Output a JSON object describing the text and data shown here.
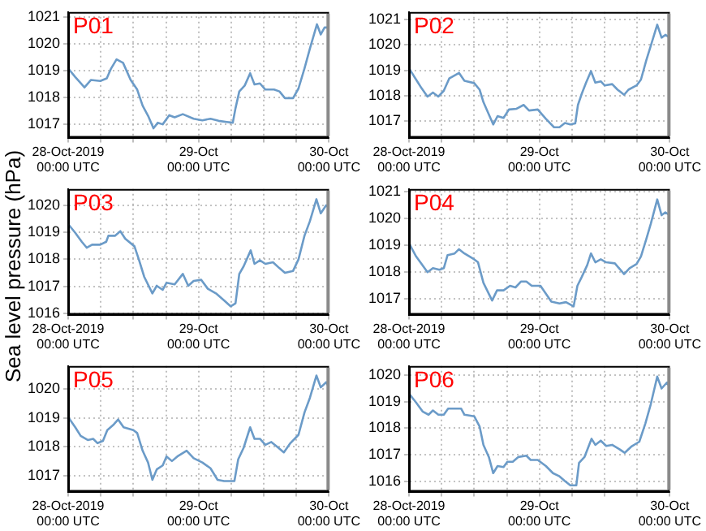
{
  "chart_data": [
    {
      "type": "line",
      "title": "P01",
      "color": "#6b9bc8",
      "xlim": [
        "2019-10-28T00:00",
        "2019-10-30T00:00"
      ],
      "ylim": [
        1016.5,
        1021.2
      ],
      "yticks": [
        1017,
        1018,
        1019,
        1020,
        1021
      ],
      "grid": true,
      "xticks": [
        {
          "value": "2019-10-28T00:00",
          "label": "28-Oct-2019\n00:00 UTC"
        },
        {
          "value": "2019-10-28T06:00",
          "label": null
        },
        {
          "value": "2019-10-28T12:00",
          "label": null
        },
        {
          "value": "2019-10-28T18:00",
          "label": null
        },
        {
          "value": "2019-10-29T00:00",
          "label": "29-Oct\n00:00 UTC"
        },
        {
          "value": "2019-10-29T06:00",
          "label": null
        },
        {
          "value": "2019-10-29T12:00",
          "label": null
        },
        {
          "value": "2019-10-29T18:00",
          "label": null
        },
        {
          "value": "2019-10-30T00:00",
          "label": "30-Oct\n00:00 UTC"
        }
      ],
      "x": [
        "2019-10-28T00:00",
        "2019-10-28T01:18",
        "2019-10-28T03:00",
        "2019-10-28T04:12",
        "2019-10-28T05:54",
        "2019-10-28T07:06",
        "2019-10-28T07:54",
        "2019-10-28T08:54",
        "2019-10-28T10:06",
        "2019-10-28T11:30",
        "2019-10-28T12:42",
        "2019-10-28T13:42",
        "2019-10-28T14:48",
        "2019-10-28T15:42",
        "2019-10-28T16:30",
        "2019-10-28T17:24",
        "2019-10-28T18:36",
        "2019-10-28T19:36",
        "2019-10-28T21:06",
        "2019-10-28T23:06",
        "2019-10-29T00:42",
        "2019-10-29T02:12",
        "2019-10-29T03:42",
        "2019-10-29T05:12",
        "2019-10-29T06:18",
        "2019-10-29T06:48",
        "2019-10-29T07:30",
        "2019-10-29T08:30",
        "2019-10-29T09:30",
        "2019-10-29T10:18",
        "2019-10-29T11:18",
        "2019-10-29T12:18",
        "2019-10-29T13:54",
        "2019-10-29T14:54",
        "2019-10-29T15:54",
        "2019-10-29T17:24",
        "2019-10-29T18:24",
        "2019-10-29T19:30",
        "2019-10-29T20:30",
        "2019-10-29T21:48",
        "2019-10-29T22:30",
        "2019-10-29T23:12",
        "2019-10-30T00:00"
      ],
      "values": [
        1019.09,
        1018.77,
        1018.38,
        1018.66,
        1018.62,
        1018.72,
        1019.09,
        1019.43,
        1019.3,
        1018.66,
        1018.3,
        1017.7,
        1017.28,
        1016.85,
        1017.06,
        1017.0,
        1017.34,
        1017.26,
        1017.38,
        1017.21,
        1017.15,
        1017.21,
        1017.13,
        1017.09,
        1017.06,
        1017.6,
        1018.23,
        1018.45,
        1018.91,
        1018.49,
        1018.53,
        1018.3,
        1018.3,
        1018.23,
        1017.98,
        1017.98,
        1018.34,
        1019.09,
        1019.83,
        1020.74,
        1020.36,
        1020.62,
        1020.62
      ]
    },
    {
      "type": "line",
      "title": "P02",
      "color": "#6b9bc8",
      "xlim": [
        "2019-10-28T00:00",
        "2019-10-30T00:00"
      ],
      "ylim": [
        1016.35,
        1021.3
      ],
      "yticks": [
        1017,
        1018,
        1019,
        1020,
        1021
      ],
      "grid": true,
      "xticks": [
        {
          "value": "2019-10-28T00:00",
          "label": "28-Oct-2019\n00:00 UTC"
        },
        {
          "value": "2019-10-28T06:00",
          "label": null
        },
        {
          "value": "2019-10-28T12:00",
          "label": null
        },
        {
          "value": "2019-10-28T18:00",
          "label": null
        },
        {
          "value": "2019-10-29T00:00",
          "label": "29-Oct\n00:00 UTC"
        },
        {
          "value": "2019-10-29T06:00",
          "label": null
        },
        {
          "value": "2019-10-29T12:00",
          "label": null
        },
        {
          "value": "2019-10-29T18:00",
          "label": null
        },
        {
          "value": "2019-10-30T00:00",
          "label": "30-Oct\n00:00 UTC"
        }
      ],
      "x": [
        "2019-10-28T00:00",
        "2019-10-28T01:18",
        "2019-10-28T02:18",
        "2019-10-28T03:24",
        "2019-10-28T04:24",
        "2019-10-28T05:24",
        "2019-10-28T06:24",
        "2019-10-28T07:24",
        "2019-10-28T09:12",
        "2019-10-28T10:12",
        "2019-10-28T12:00",
        "2019-10-28T13:00",
        "2019-10-28T13:42",
        "2019-10-28T15:30",
        "2019-10-28T16:18",
        "2019-10-28T17:24",
        "2019-10-28T18:24",
        "2019-10-28T19:48",
        "2019-10-28T21:06",
        "2019-10-28T22:06",
        "2019-10-28T23:42",
        "2019-10-29T01:12",
        "2019-10-29T02:42",
        "2019-10-29T03:42",
        "2019-10-29T04:42",
        "2019-10-29T05:42",
        "2019-10-29T06:36",
        "2019-10-29T07:06",
        "2019-10-29T07:48",
        "2019-10-29T08:36",
        "2019-10-29T09:30",
        "2019-10-29T10:18",
        "2019-10-29T11:18",
        "2019-10-29T12:00",
        "2019-10-29T13:24",
        "2019-10-29T14:24",
        "2019-10-29T15:36",
        "2019-10-29T16:24",
        "2019-10-29T17:54",
        "2019-10-29T18:42",
        "2019-10-29T19:42",
        "2019-10-29T20:30",
        "2019-10-29T21:42",
        "2019-10-29T22:30",
        "2019-10-29T23:12",
        "2019-10-30T00:00"
      ],
      "values": [
        1019.08,
        1018.64,
        1018.3,
        1017.97,
        1018.13,
        1017.97,
        1018.2,
        1018.68,
        1018.9,
        1018.59,
        1018.5,
        1018.24,
        1017.75,
        1016.87,
        1017.2,
        1017.13,
        1017.46,
        1017.49,
        1017.64,
        1017.42,
        1017.46,
        1017.09,
        1016.76,
        1016.76,
        1016.93,
        1016.87,
        1016.91,
        1017.64,
        1018.08,
        1018.52,
        1018.97,
        1018.52,
        1018.57,
        1018.41,
        1018.46,
        1018.24,
        1018.04,
        1018.24,
        1018.41,
        1018.64,
        1019.41,
        1019.96,
        1020.8,
        1020.29,
        1020.4,
        1020.29
      ]
    },
    {
      "type": "line",
      "title": "P03",
      "ylabel": "Sea level pressure (hPa)",
      "color": "#6b9bc8",
      "xlim": [
        "2019-10-28T00:00",
        "2019-10-30T00:00"
      ],
      "ylim": [
        1015.95,
        1020.6
      ],
      "yticks": [
        1016,
        1017,
        1018,
        1019,
        1020
      ],
      "grid": true,
      "xticks": [
        {
          "value": "2019-10-28T00:00",
          "label": "28-Oct-2019\n00:00 UTC"
        },
        {
          "value": "2019-10-28T06:00",
          "label": null
        },
        {
          "value": "2019-10-28T12:00",
          "label": null
        },
        {
          "value": "2019-10-28T18:00",
          "label": null
        },
        {
          "value": "2019-10-29T00:00",
          "label": "29-Oct\n00:00 UTC"
        },
        {
          "value": "2019-10-29T06:00",
          "label": null
        },
        {
          "value": "2019-10-29T12:00",
          "label": null
        },
        {
          "value": "2019-10-29T18:00",
          "label": null
        },
        {
          "value": "2019-10-30T00:00",
          "label": "30-Oct\n00:00 UTC"
        }
      ],
      "x": [
        "2019-10-28T00:00",
        "2019-10-28T01:18",
        "2019-10-28T02:30",
        "2019-10-28T03:24",
        "2019-10-28T04:24",
        "2019-10-28T05:54",
        "2019-10-28T07:00",
        "2019-10-28T07:24",
        "2019-10-28T08:36",
        "2019-10-28T09:36",
        "2019-10-28T10:30",
        "2019-10-28T12:12",
        "2019-10-28T13:00",
        "2019-10-28T14:00",
        "2019-10-28T15:30",
        "2019-10-28T16:18",
        "2019-10-28T17:24",
        "2019-10-28T18:06",
        "2019-10-28T19:36",
        "2019-10-28T21:06",
        "2019-10-28T22:06",
        "2019-10-28T23:06",
        "2019-10-29T00:30",
        "2019-10-29T01:42",
        "2019-10-29T03:12",
        "2019-10-29T04:42",
        "2019-10-29T05:54",
        "2019-10-29T06:48",
        "2019-10-29T07:30",
        "2019-10-29T08:18",
        "2019-10-29T09:36",
        "2019-10-29T10:18",
        "2019-10-29T11:18",
        "2019-10-29T12:18",
        "2019-10-29T13:42",
        "2019-10-29T14:54",
        "2019-10-29T15:54",
        "2019-10-29T17:24",
        "2019-10-29T18:24",
        "2019-10-29T19:30",
        "2019-10-29T20:30",
        "2019-10-29T21:42",
        "2019-10-29T22:30",
        "2019-10-29T23:30",
        "2019-10-30T00:00"
      ],
      "values": [
        1019.3,
        1018.98,
        1018.65,
        1018.43,
        1018.54,
        1018.54,
        1018.65,
        1018.87,
        1018.87,
        1019.04,
        1018.76,
        1018.48,
        1018.0,
        1017.35,
        1016.74,
        1017.02,
        1016.87,
        1017.13,
        1017.07,
        1017.46,
        1017.02,
        1017.2,
        1017.24,
        1016.91,
        1016.74,
        1016.48,
        1016.26,
        1016.37,
        1017.46,
        1017.74,
        1018.33,
        1017.83,
        1017.96,
        1017.83,
        1017.89,
        1017.67,
        1017.5,
        1017.57,
        1018.0,
        1018.87,
        1019.41,
        1020.22,
        1019.7,
        1020.0,
        1019.91
      ]
    },
    {
      "type": "line",
      "title": "P04",
      "color": "#6b9bc8",
      "xlim": [
        "2019-10-28T00:00",
        "2019-10-30T00:00"
      ],
      "ylim": [
        1016.4,
        1021.1
      ],
      "yticks": [
        1017,
        1018,
        1019,
        1020,
        1021
      ],
      "grid": true,
      "xticks": [
        {
          "value": "2019-10-28T00:00",
          "label": "28-Oct-2019\n00:00 UTC"
        },
        {
          "value": "2019-10-28T06:00",
          "label": null
        },
        {
          "value": "2019-10-28T12:00",
          "label": null
        },
        {
          "value": "2019-10-28T18:00",
          "label": null
        },
        {
          "value": "2019-10-29T00:00",
          "label": "29-Oct\n00:00 UTC"
        },
        {
          "value": "2019-10-29T06:00",
          "label": null
        },
        {
          "value": "2019-10-29T12:00",
          "label": null
        },
        {
          "value": "2019-10-29T18:00",
          "label": null
        },
        {
          "value": "2019-10-30T00:00",
          "label": "30-Oct\n00:00 UTC"
        }
      ],
      "x": [
        "2019-10-28T00:00",
        "2019-10-28T01:18",
        "2019-10-28T02:18",
        "2019-10-28T03:24",
        "2019-10-28T04:24",
        "2019-10-28T05:36",
        "2019-10-28T06:24",
        "2019-10-28T07:06",
        "2019-10-28T08:24",
        "2019-10-28T09:12",
        "2019-10-28T10:12",
        "2019-10-28T12:00",
        "2019-10-28T12:42",
        "2019-10-28T13:42",
        "2019-10-28T15:18",
        "2019-10-28T16:12",
        "2019-10-28T17:24",
        "2019-10-28T18:36",
        "2019-10-28T19:36",
        "2019-10-28T20:36",
        "2019-10-28T21:36",
        "2019-10-28T22:36",
        "2019-10-29T00:12",
        "2019-10-29T02:12",
        "2019-10-29T03:42",
        "2019-10-29T04:54",
        "2019-10-29T06:18",
        "2019-10-29T07:00",
        "2019-10-29T07:48",
        "2019-10-29T08:48",
        "2019-10-29T09:30",
        "2019-10-29T10:18",
        "2019-10-29T11:18",
        "2019-10-29T12:18",
        "2019-10-29T13:54",
        "2019-10-29T15:36",
        "2019-10-29T16:36",
        "2019-10-29T17:54",
        "2019-10-29T18:42",
        "2019-10-29T19:42",
        "2019-10-29T20:30",
        "2019-10-29T21:42",
        "2019-10-29T22:30",
        "2019-10-29T23:12",
        "2019-10-30T00:00"
      ],
      "values": [
        1019.07,
        1018.58,
        1018.3,
        1017.99,
        1018.14,
        1018.08,
        1018.14,
        1018.63,
        1018.69,
        1018.85,
        1018.69,
        1018.47,
        1018.36,
        1017.59,
        1016.93,
        1017.31,
        1017.31,
        1017.48,
        1017.42,
        1017.64,
        1017.64,
        1017.48,
        1017.48,
        1016.89,
        1016.82,
        1016.87,
        1016.71,
        1017.48,
        1017.81,
        1018.25,
        1018.69,
        1018.36,
        1018.47,
        1018.36,
        1018.32,
        1017.92,
        1018.14,
        1018.3,
        1018.58,
        1019.24,
        1019.79,
        1020.71,
        1020.12,
        1020.23,
        1020.12
      ]
    },
    {
      "type": "line",
      "title": "P05",
      "color": "#6b9bc8",
      "xlim": [
        "2019-10-28T00:00",
        "2019-10-30T00:00"
      ],
      "ylim": [
        1016.45,
        1020.8
      ],
      "yticks": [
        1017,
        1018,
        1019,
        1020
      ],
      "grid": true,
      "xticks": [
        {
          "value": "2019-10-28T00:00",
          "label": "28-Oct-2019\n00:00 UTC"
        },
        {
          "value": "2019-10-28T06:00",
          "label": null
        },
        {
          "value": "2019-10-28T12:00",
          "label": null
        },
        {
          "value": "2019-10-28T18:00",
          "label": null
        },
        {
          "value": "2019-10-29T00:00",
          "label": "29-Oct\n00:00 UTC"
        },
        {
          "value": "2019-10-29T06:00",
          "label": null
        },
        {
          "value": "2019-10-29T12:00",
          "label": null
        },
        {
          "value": "2019-10-29T18:00",
          "label": null
        },
        {
          "value": "2019-10-30T00:00",
          "label": "30-Oct\n00:00 UTC"
        }
      ],
      "x": [
        "2019-10-28T00:00",
        "2019-10-28T01:18",
        "2019-10-28T02:18",
        "2019-10-28T03:36",
        "2019-10-28T04:36",
        "2019-10-28T05:24",
        "2019-10-28T06:24",
        "2019-10-28T07:12",
        "2019-10-28T08:24",
        "2019-10-28T09:12",
        "2019-10-28T10:12",
        "2019-10-28T12:00",
        "2019-10-28T12:42",
        "2019-10-28T13:42",
        "2019-10-28T14:42",
        "2019-10-28T15:30",
        "2019-10-28T16:18",
        "2019-10-28T17:24",
        "2019-10-28T18:06",
        "2019-10-28T19:06",
        "2019-10-28T20:06",
        "2019-10-28T21:48",
        "2019-10-28T23:06",
        "2019-10-29T00:42",
        "2019-10-29T02:12",
        "2019-10-29T03:30",
        "2019-10-29T04:42",
        "2019-10-29T06:36",
        "2019-10-29T07:18",
        "2019-10-29T08:18",
        "2019-10-29T09:30",
        "2019-10-29T10:18",
        "2019-10-29T11:18",
        "2019-10-29T12:18",
        "2019-10-29T13:24",
        "2019-10-29T14:42",
        "2019-10-29T15:42",
        "2019-10-29T16:54",
        "2019-10-29T18:24",
        "2019-10-29T19:30",
        "2019-10-29T20:30",
        "2019-10-29T21:42",
        "2019-10-29T22:30",
        "2019-10-29T23:30",
        "2019-10-30T00:00"
      ],
      "values": [
        1019.03,
        1018.68,
        1018.38,
        1018.24,
        1018.28,
        1018.13,
        1018.21,
        1018.58,
        1018.78,
        1018.95,
        1018.68,
        1018.58,
        1018.48,
        1017.87,
        1017.46,
        1016.86,
        1017.22,
        1017.36,
        1017.67,
        1017.51,
        1017.67,
        1017.87,
        1017.61,
        1017.46,
        1017.26,
        1016.86,
        1016.82,
        1016.82,
        1017.57,
        1017.97,
        1018.68,
        1018.28,
        1018.28,
        1018.07,
        1018.17,
        1017.97,
        1017.81,
        1018.13,
        1018.42,
        1019.19,
        1019.7,
        1020.47,
        1020.06,
        1020.24,
        1020.06
      ]
    },
    {
      "type": "line",
      "title": "P06",
      "color": "#6b9bc8",
      "xlim": [
        "2019-10-28T00:00",
        "2019-10-30T00:00"
      ],
      "ylim": [
        1015.6,
        1020.35
      ],
      "yticks": [
        1016,
        1017,
        1018,
        1019,
        1020
      ],
      "grid": true,
      "xticks": [
        {
          "value": "2019-10-28T00:00",
          "label": "28-Oct-2019\n00:00 UTC"
        },
        {
          "value": "2019-10-28T06:00",
          "label": null
        },
        {
          "value": "2019-10-28T12:00",
          "label": null
        },
        {
          "value": "2019-10-28T18:00",
          "label": null
        },
        {
          "value": "2019-10-29T00:00",
          "label": "29-Oct\n00:00 UTC"
        },
        {
          "value": "2019-10-29T06:00",
          "label": null
        },
        {
          "value": "2019-10-29T12:00",
          "label": null
        },
        {
          "value": "2019-10-29T18:00",
          "label": null
        },
        {
          "value": "2019-10-30T00:00",
          "label": "30-Oct\n00:00 UTC"
        }
      ],
      "x": [
        "2019-10-28T00:00",
        "2019-10-28T01:18",
        "2019-10-28T02:30",
        "2019-10-28T03:36",
        "2019-10-28T04:24",
        "2019-10-28T05:24",
        "2019-10-28T06:24",
        "2019-10-28T07:12",
        "2019-10-28T08:24",
        "2019-10-28T09:36",
        "2019-10-28T10:12",
        "2019-10-28T12:00",
        "2019-10-28T13:00",
        "2019-10-28T13:42",
        "2019-10-28T14:42",
        "2019-10-28T15:30",
        "2019-10-28T16:18",
        "2019-10-28T17:24",
        "2019-10-28T18:06",
        "2019-10-28T19:06",
        "2019-10-28T20:06",
        "2019-10-28T21:36",
        "2019-10-28T22:24",
        "2019-10-28T23:42",
        "2019-10-29T01:12",
        "2019-10-29T02:30",
        "2019-10-29T03:42",
        "2019-10-29T04:42",
        "2019-10-29T05:42",
        "2019-10-29T06:48",
        "2019-10-29T07:18",
        "2019-10-29T08:18",
        "2019-10-29T09:36",
        "2019-10-29T10:18",
        "2019-10-29T11:18",
        "2019-10-29T12:18",
        "2019-10-29T13:24",
        "2019-10-29T14:42",
        "2019-10-29T15:42",
        "2019-10-29T16:54",
        "2019-10-29T18:24",
        "2019-10-29T19:30",
        "2019-10-29T20:30",
        "2019-10-29T21:42",
        "2019-10-29T22:30",
        "2019-10-29T23:30",
        "2019-10-30T00:00"
      ],
      "values": [
        1019.31,
        1018.97,
        1018.63,
        1018.51,
        1018.67,
        1018.51,
        1018.51,
        1018.74,
        1018.74,
        1018.74,
        1018.51,
        1018.45,
        1018.06,
        1017.37,
        1016.91,
        1016.3,
        1016.57,
        1016.53,
        1016.73,
        1016.73,
        1016.91,
        1016.96,
        1016.8,
        1016.8,
        1016.57,
        1016.3,
        1016.18,
        1016.0,
        1015.84,
        1015.84,
        1016.69,
        1016.91,
        1017.6,
        1017.37,
        1017.53,
        1017.33,
        1017.37,
        1017.21,
        1017.07,
        1017.3,
        1017.49,
        1018.17,
        1018.9,
        1019.95,
        1019.5,
        1019.73,
        1019.54
      ]
    }
  ]
}
